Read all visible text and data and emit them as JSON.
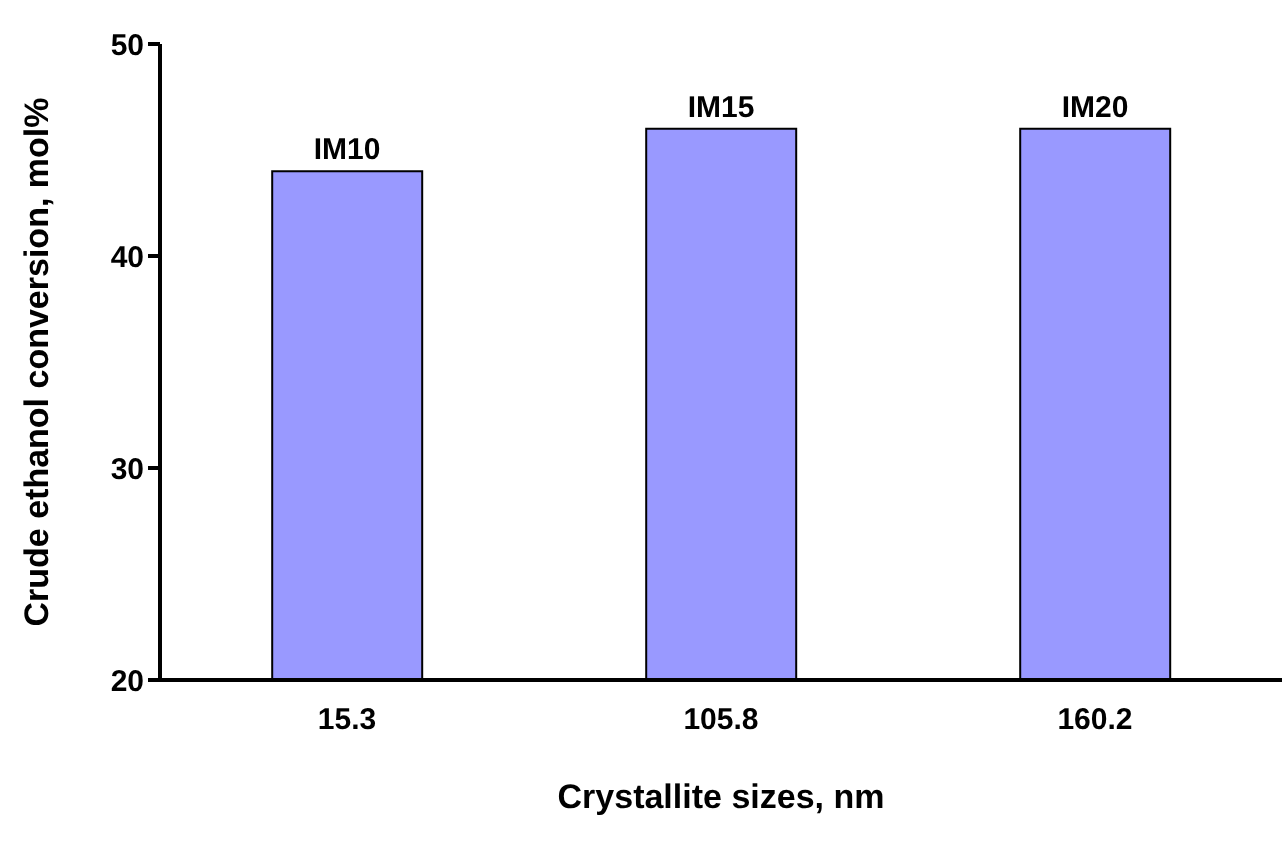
{
  "chart_data": {
    "type": "bar",
    "xlabel": "Crystallite sizes, nm",
    "ylabel": "Crude ethanol conversion, mol%",
    "categories": [
      "15.3",
      "105.8",
      "160.2"
    ],
    "values": [
      44,
      46,
      46
    ],
    "color": "#9999ff",
    "ylim": [
      20,
      50
    ],
    "yticks": [
      20,
      30,
      40,
      50
    ],
    "grid": false,
    "annotations": [
      {
        "text": "IM10",
        "x": "15.3",
        "y": 44
      },
      {
        "text": "IM15",
        "x": "105.8",
        "y": 46
      },
      {
        "text": "IM20",
        "x": "160.2",
        "y": 46
      }
    ]
  }
}
